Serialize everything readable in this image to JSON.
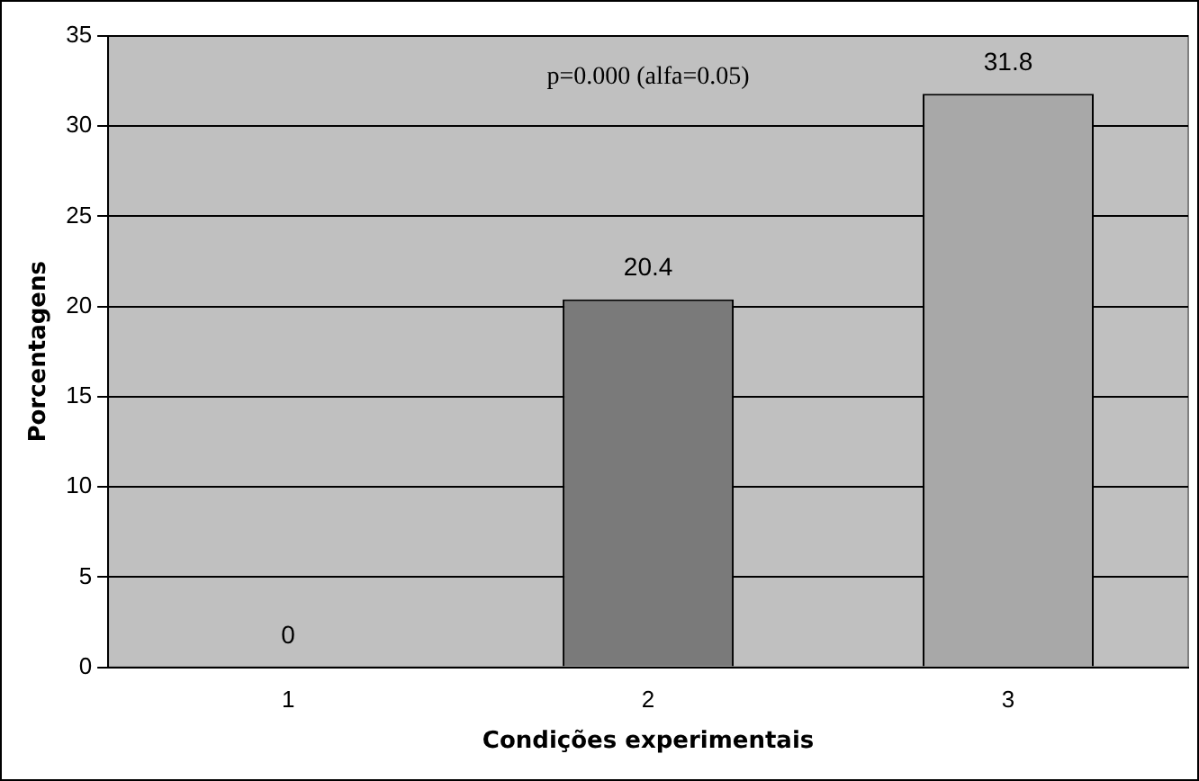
{
  "chart_data": {
    "type": "bar",
    "xlabel": "Condições experimentais",
    "ylabel": "Porcentagens",
    "categories": [
      "1",
      "2",
      "3"
    ],
    "values": [
      0,
      20.4,
      31.8
    ],
    "colors": [
      "#808080",
      "#7a7a7a",
      "#a8a8a8"
    ],
    "ylim": [
      0,
      35
    ],
    "yticks": [
      0,
      5,
      10,
      15,
      20,
      25,
      30,
      35
    ],
    "grid": "y",
    "data_labels": true,
    "annotations": [
      "p=0.000 (alfa=0.05)"
    ]
  }
}
